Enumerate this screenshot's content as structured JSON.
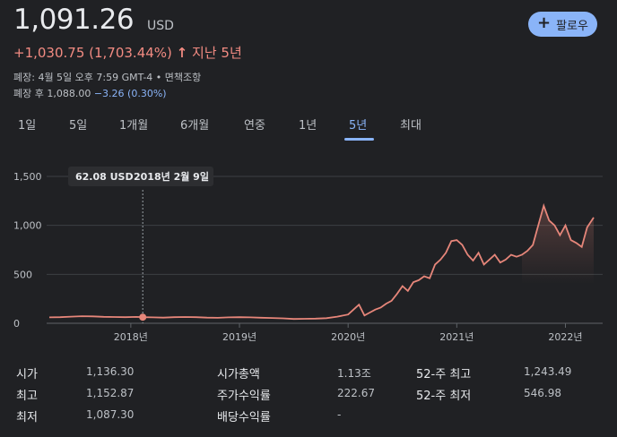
{
  "quote": {
    "price": "1,091.26",
    "currency": "USD",
    "change": "+1,030.75 (1,703.44%)",
    "arrow": "↑",
    "period_label": "지난 5년",
    "close_info": "폐장: 4월 5일 오후 7:59 GMT-4 • 면책조항",
    "after_hours_prefix": "폐장 후 1,088.00",
    "after_hours_change": "−3.26 (0.30%)"
  },
  "follow_button": {
    "icon": "plus-icon",
    "label": "팔로우"
  },
  "tabs": [
    "1일",
    "5일",
    "1개월",
    "6개월",
    "연중",
    "1년",
    "5년",
    "최대"
  ],
  "active_tab": "5년",
  "tooltip": {
    "price": "62.08 USD",
    "date": "2018년 2월 9일"
  },
  "colors": {
    "line": "#e6867a",
    "accent": "#8ab4f8",
    "background": "#202124"
  },
  "chart_data": {
    "type": "line",
    "series": [
      {
        "x": [
          2017.25,
          2017.35,
          2017.45,
          2017.55,
          2017.65,
          2017.75,
          2017.85,
          2017.95,
          2018.05,
          2018.11,
          2018.2,
          2018.3,
          2018.4,
          2018.5,
          2018.6,
          2018.7,
          2018.8,
          2018.9,
          2019.0,
          2019.1,
          2019.2,
          2019.3,
          2019.4,
          2019.5,
          2019.6,
          2019.7,
          2019.8,
          2019.9,
          2020.0,
          2020.05,
          2020.1,
          2020.15,
          2020.2,
          2020.25,
          2020.3,
          2020.35,
          2020.4,
          2020.45,
          2020.5,
          2020.55,
          2020.6,
          2020.65,
          2020.7,
          2020.75,
          2020.8,
          2020.85,
          2020.9,
          2020.95,
          2021.0,
          2021.05,
          2021.1,
          2021.15,
          2021.2,
          2021.25,
          2021.3,
          2021.35,
          2021.4,
          2021.45,
          2021.5,
          2021.55,
          2021.6,
          2021.65,
          2021.7,
          2021.75,
          2021.8,
          2021.85,
          2021.9,
          2021.95,
          2022.0,
          2022.05,
          2022.1,
          2022.15,
          2022.2,
          2022.26
        ],
        "y": [
          60,
          62,
          68,
          72,
          70,
          66,
          64,
          62,
          65,
          62,
          60,
          58,
          62,
          64,
          62,
          58,
          56,
          60,
          62,
          60,
          57,
          54,
          50,
          44,
          46,
          48,
          52,
          68,
          90,
          140,
          190,
          80,
          110,
          140,
          160,
          200,
          230,
          300,
          380,
          330,
          420,
          440,
          480,
          460,
          600,
          650,
          720,
          840,
          850,
          800,
          700,
          640,
          720,
          600,
          650,
          700,
          620,
          650,
          700,
          680,
          700,
          740,
          800,
          1000,
          1200,
          1050,
          1000,
          900,
          1000,
          850,
          820,
          780,
          980,
          1080
        ]
      }
    ],
    "xlim": [
      2017.25,
      2022.26
    ],
    "ylim": [
      0,
      1500
    ],
    "y_ticks": [
      {
        "value": 1500,
        "label": "1,500"
      },
      {
        "value": 1000,
        "label": "1,000"
      },
      {
        "value": 500,
        "label": "500"
      },
      {
        "value": 0,
        "label": "0"
      }
    ],
    "x_ticks": [
      {
        "value": 2018.0,
        "label": "2018년"
      },
      {
        "value": 2019.0,
        "label": "2019년"
      },
      {
        "value": 2020.0,
        "label": "2020년"
      },
      {
        "value": 2021.0,
        "label": "2021년"
      },
      {
        "value": 2022.0,
        "label": "2022년"
      }
    ],
    "highlight": {
      "x": 2018.11,
      "y": 62.08
    },
    "grid": true
  },
  "stats": [
    {
      "label": "시가",
      "value": "1,136.30"
    },
    {
      "label": "최고",
      "value": "1,152.87"
    },
    {
      "label": "최저",
      "value": "1,087.30"
    },
    {
      "label": "시가총액",
      "value": "1.13조"
    },
    {
      "label": "주가수익률",
      "value": "222.67"
    },
    {
      "label": "배당수익률",
      "value": "-"
    },
    {
      "label": "52-주 최고",
      "value": "1,243.49"
    },
    {
      "label": "52-주 최저",
      "value": "546.98"
    }
  ]
}
